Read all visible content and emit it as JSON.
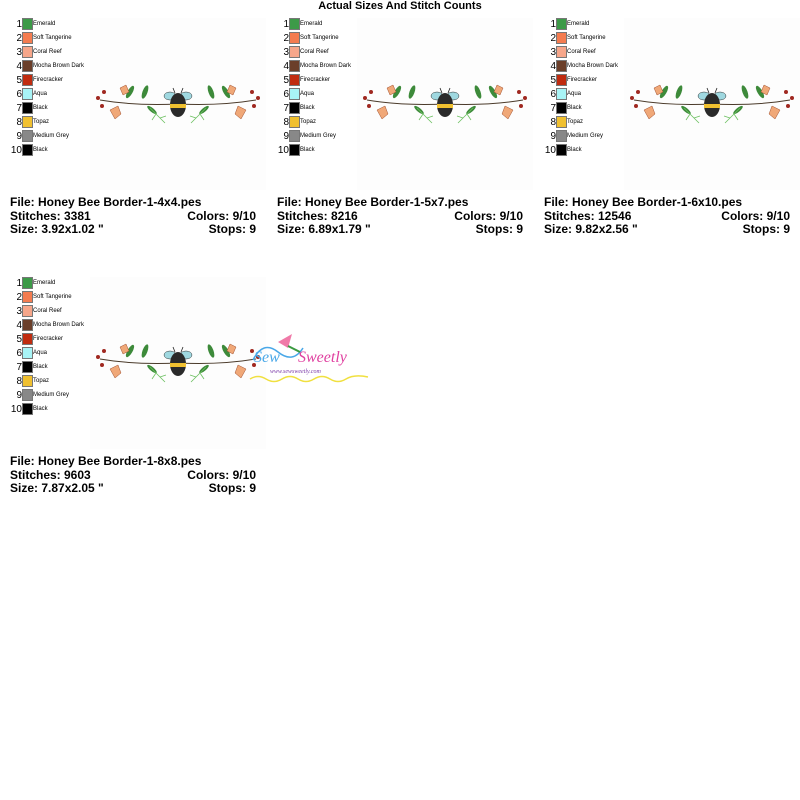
{
  "page_title": "Actual Sizes And Stitch Counts",
  "colors": [
    {
      "num": "1",
      "name": "Emerald",
      "hex": "#3d9a48"
    },
    {
      "num": "2",
      "name": "Soft Tangerine",
      "hex": "#f47c50"
    },
    {
      "num": "3",
      "name": "Coral Reef",
      "hex": "#f6a68a"
    },
    {
      "num": "4",
      "name": "Mocha Brown Dark",
      "hex": "#6b3f2a"
    },
    {
      "num": "5",
      "name": "Firecracker",
      "hex": "#c02c10"
    },
    {
      "num": "6",
      "name": "Aqua",
      "hex": "#a8f4f6"
    },
    {
      "num": "7",
      "name": "Black",
      "hex": "#000000"
    },
    {
      "num": "8",
      "name": "Topaz",
      "hex": "#f0c030"
    },
    {
      "num": "9",
      "name": "Medium Grey",
      "hex": "#888888"
    },
    {
      "num": "10",
      "name": "Black",
      "hex": "#000000"
    }
  ],
  "panels": [
    {
      "file": "File: Honey Bee Border-1-4x4.pes",
      "stitches": "Stitches: 3381",
      "colors": "Colors: 9/10",
      "size": "Size: 3.92x1.02 \"",
      "stops": "Stops: 9"
    },
    {
      "file": "File: Honey Bee Border-1-5x7.pes",
      "stitches": "Stitches: 8216",
      "colors": "Colors: 9/10",
      "size": "Size: 6.89x1.79 \"",
      "stops": "Stops: 9"
    },
    {
      "file": "File: Honey Bee Border-1-6x10.pes",
      "stitches": "Stitches: 12546",
      "colors": "Colors: 9/10",
      "size": "Size: 9.82x2.56 \"",
      "stops": "Stops: 9"
    },
    {
      "file": "File: Honey Bee Border-1-8x8.pes",
      "stitches": "Stitches: 9603",
      "colors": "Colors: 9/10",
      "size": "Size: 7.87x2.05 \"",
      "stops": "Stops: 9"
    }
  ],
  "logo": {
    "name": "Sew Sweetly",
    "url": "www.sewsweetly.com"
  }
}
